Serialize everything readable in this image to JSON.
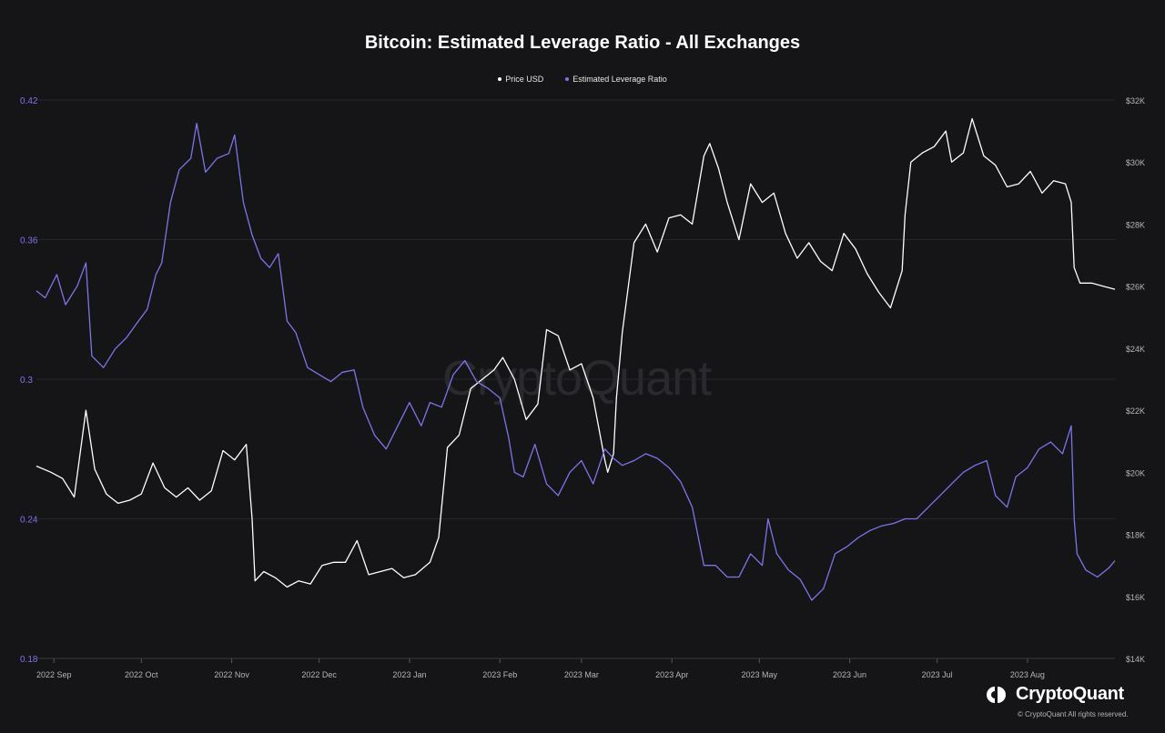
{
  "watermark": "CryptoQuant",
  "brand": {
    "name": "CryptoQuant",
    "copyright": "© CryptoQuant All rights reserved."
  },
  "chart_data": {
    "type": "line",
    "title": "Bitcoin: Estimated Leverage Ratio - All Exchanges",
    "legend_position": "top-center",
    "grid": true,
    "x_tick_labels": [
      "2022 Sep",
      "2022 Oct",
      "2022 Nov",
      "2022 Dec",
      "2023 Jan",
      "2023 Feb",
      "2023 Mar",
      "2023 Apr",
      "2023 May",
      "2023 Jun",
      "2023 Jul",
      "2023 Aug"
    ],
    "x_range": [
      "2022-08-26",
      "2023-08-31"
    ],
    "y_left": {
      "ticks": [
        "0.18",
        "0.24",
        "0.3",
        "0.36",
        "0.42"
      ],
      "range": [
        0.18,
        0.42
      ],
      "color": "#7c74e9"
    },
    "y_right": {
      "ticks": [
        "$14K",
        "$16K",
        "$18K",
        "$20K",
        "$22K",
        "$24K",
        "$26K",
        "$28K",
        "$30K",
        "$32K"
      ],
      "range": [
        14000,
        32000
      ],
      "color": "#b5b5b5"
    },
    "series": [
      {
        "name": "Price USD",
        "axis": "right",
        "color": "#ffffff",
        "points": [
          [
            "2022-08-26",
            20200
          ],
          [
            "2022-08-31",
            20000
          ],
          [
            "2022-09-04",
            19800
          ],
          [
            "2022-09-08",
            19200
          ],
          [
            "2022-09-12",
            22000
          ],
          [
            "2022-09-15",
            20100
          ],
          [
            "2022-09-19",
            19300
          ],
          [
            "2022-09-23",
            19000
          ],
          [
            "2022-09-27",
            19100
          ],
          [
            "2022-10-01",
            19300
          ],
          [
            "2022-10-05",
            20300
          ],
          [
            "2022-10-09",
            19500
          ],
          [
            "2022-10-13",
            19200
          ],
          [
            "2022-10-17",
            19500
          ],
          [
            "2022-10-21",
            19100
          ],
          [
            "2022-10-25",
            19400
          ],
          [
            "2022-10-29",
            20700
          ],
          [
            "2022-11-02",
            20400
          ],
          [
            "2022-11-06",
            20900
          ],
          [
            "2022-11-08",
            18500
          ],
          [
            "2022-11-09",
            16500
          ],
          [
            "2022-11-12",
            16800
          ],
          [
            "2022-11-16",
            16600
          ],
          [
            "2022-11-20",
            16300
          ],
          [
            "2022-11-24",
            16500
          ],
          [
            "2022-11-28",
            16400
          ],
          [
            "2022-12-02",
            17000
          ],
          [
            "2022-12-06",
            17100
          ],
          [
            "2022-12-10",
            17100
          ],
          [
            "2022-12-14",
            17800
          ],
          [
            "2022-12-18",
            16700
          ],
          [
            "2022-12-22",
            16800
          ],
          [
            "2022-12-26",
            16900
          ],
          [
            "2022-12-30",
            16600
          ],
          [
            "2023-01-03",
            16700
          ],
          [
            "2023-01-08",
            17100
          ],
          [
            "2023-01-11",
            17900
          ],
          [
            "2023-01-14",
            20800
          ],
          [
            "2023-01-18",
            21200
          ],
          [
            "2023-01-22",
            22700
          ],
          [
            "2023-01-26",
            23000
          ],
          [
            "2023-01-30",
            23300
          ],
          [
            "2023-02-02",
            23700
          ],
          [
            "2023-02-06",
            23000
          ],
          [
            "2023-02-10",
            21700
          ],
          [
            "2023-02-14",
            22200
          ],
          [
            "2023-02-17",
            24600
          ],
          [
            "2023-02-21",
            24400
          ],
          [
            "2023-02-25",
            23300
          ],
          [
            "2023-03-01",
            23500
          ],
          [
            "2023-03-05",
            22400
          ],
          [
            "2023-03-09",
            20400
          ],
          [
            "2023-03-10",
            20000
          ],
          [
            "2023-03-12",
            20600
          ],
          [
            "2023-03-13",
            22400
          ],
          [
            "2023-03-15",
            24500
          ],
          [
            "2023-03-19",
            27400
          ],
          [
            "2023-03-23",
            28000
          ],
          [
            "2023-03-27",
            27100
          ],
          [
            "2023-03-31",
            28200
          ],
          [
            "2023-04-04",
            28300
          ],
          [
            "2023-04-08",
            28000
          ],
          [
            "2023-04-12",
            30200
          ],
          [
            "2023-04-14",
            30600
          ],
          [
            "2023-04-17",
            29800
          ],
          [
            "2023-04-20",
            28700
          ],
          [
            "2023-04-24",
            27500
          ],
          [
            "2023-04-28",
            29300
          ],
          [
            "2023-05-02",
            28700
          ],
          [
            "2023-05-06",
            29000
          ],
          [
            "2023-05-10",
            27700
          ],
          [
            "2023-05-14",
            26900
          ],
          [
            "2023-05-18",
            27400
          ],
          [
            "2023-05-22",
            26800
          ],
          [
            "2023-05-26",
            26500
          ],
          [
            "2023-05-30",
            27700
          ],
          [
            "2023-06-03",
            27200
          ],
          [
            "2023-06-07",
            26400
          ],
          [
            "2023-06-11",
            25800
          ],
          [
            "2023-06-15",
            25300
          ],
          [
            "2023-06-19",
            26500
          ],
          [
            "2023-06-20",
            28300
          ],
          [
            "2023-06-22",
            30000
          ],
          [
            "2023-06-26",
            30300
          ],
          [
            "2023-06-30",
            30500
          ],
          [
            "2023-07-04",
            31000
          ],
          [
            "2023-07-06",
            30000
          ],
          [
            "2023-07-10",
            30300
          ],
          [
            "2023-07-13",
            31400
          ],
          [
            "2023-07-17",
            30200
          ],
          [
            "2023-07-21",
            29900
          ],
          [
            "2023-07-25",
            29200
          ],
          [
            "2023-07-29",
            29300
          ],
          [
            "2023-08-02",
            29700
          ],
          [
            "2023-08-06",
            29000
          ],
          [
            "2023-08-10",
            29400
          ],
          [
            "2023-08-14",
            29300
          ],
          [
            "2023-08-16",
            28700
          ],
          [
            "2023-08-17",
            26600
          ],
          [
            "2023-08-19",
            26100
          ],
          [
            "2023-08-23",
            26100
          ],
          [
            "2023-08-27",
            26000
          ],
          [
            "2023-08-31",
            25900
          ]
        ]
      },
      {
        "name": "Estimated Leverage Ratio",
        "axis": "left",
        "color": "#7c74e9",
        "points": [
          [
            "2022-08-26",
            0.338
          ],
          [
            "2022-08-29",
            0.335
          ],
          [
            "2022-09-02",
            0.345
          ],
          [
            "2022-09-05",
            0.332
          ],
          [
            "2022-09-09",
            0.34
          ],
          [
            "2022-09-12",
            0.35
          ],
          [
            "2022-09-14",
            0.31
          ],
          [
            "2022-09-18",
            0.305
          ],
          [
            "2022-09-22",
            0.313
          ],
          [
            "2022-09-26",
            0.318
          ],
          [
            "2022-09-30",
            0.325
          ],
          [
            "2022-10-03",
            0.33
          ],
          [
            "2022-10-06",
            0.345
          ],
          [
            "2022-10-08",
            0.35
          ],
          [
            "2022-10-11",
            0.376
          ],
          [
            "2022-10-14",
            0.39
          ],
          [
            "2022-10-18",
            0.395
          ],
          [
            "2022-10-20",
            0.41
          ],
          [
            "2022-10-23",
            0.389
          ],
          [
            "2022-10-27",
            0.395
          ],
          [
            "2022-10-31",
            0.397
          ],
          [
            "2022-11-02",
            0.405
          ],
          [
            "2022-11-05",
            0.376
          ],
          [
            "2022-11-08",
            0.362
          ],
          [
            "2022-11-11",
            0.352
          ],
          [
            "2022-11-14",
            0.348
          ],
          [
            "2022-11-17",
            0.354
          ],
          [
            "2022-11-20",
            0.325
          ],
          [
            "2022-11-23",
            0.32
          ],
          [
            "2022-11-27",
            0.305
          ],
          [
            "2022-12-01",
            0.302
          ],
          [
            "2022-12-05",
            0.299
          ],
          [
            "2022-12-09",
            0.303
          ],
          [
            "2022-12-13",
            0.304
          ],
          [
            "2022-12-16",
            0.288
          ],
          [
            "2022-12-20",
            0.276
          ],
          [
            "2022-12-24",
            0.27
          ],
          [
            "2022-12-28",
            0.28
          ],
          [
            "2023-01-01",
            0.29
          ],
          [
            "2023-01-05",
            0.28
          ],
          [
            "2023-01-08",
            0.29
          ],
          [
            "2023-01-12",
            0.288
          ],
          [
            "2023-01-16",
            0.302
          ],
          [
            "2023-01-20",
            0.308
          ],
          [
            "2023-01-24",
            0.299
          ],
          [
            "2023-01-28",
            0.296
          ],
          [
            "2023-02-01",
            0.292
          ],
          [
            "2023-02-04",
            0.275
          ],
          [
            "2023-02-06",
            0.26
          ],
          [
            "2023-02-09",
            0.258
          ],
          [
            "2023-02-13",
            0.272
          ],
          [
            "2023-02-17",
            0.255
          ],
          [
            "2023-02-21",
            0.25
          ],
          [
            "2023-02-25",
            0.26
          ],
          [
            "2023-03-01",
            0.265
          ],
          [
            "2023-03-05",
            0.255
          ],
          [
            "2023-03-09",
            0.27
          ],
          [
            "2023-03-12",
            0.266
          ],
          [
            "2023-03-15",
            0.263
          ],
          [
            "2023-03-19",
            0.265
          ],
          [
            "2023-03-23",
            0.268
          ],
          [
            "2023-03-27",
            0.266
          ],
          [
            "2023-03-31",
            0.262
          ],
          [
            "2023-04-04",
            0.256
          ],
          [
            "2023-04-08",
            0.245
          ],
          [
            "2023-04-12",
            0.22
          ],
          [
            "2023-04-16",
            0.22
          ],
          [
            "2023-04-20",
            0.215
          ],
          [
            "2023-04-24",
            0.215
          ],
          [
            "2023-04-28",
            0.225
          ],
          [
            "2023-05-02",
            0.22
          ],
          [
            "2023-05-04",
            0.24
          ],
          [
            "2023-05-07",
            0.225
          ],
          [
            "2023-05-11",
            0.218
          ],
          [
            "2023-05-15",
            0.214
          ],
          [
            "2023-05-19",
            0.205
          ],
          [
            "2023-05-23",
            0.21
          ],
          [
            "2023-05-27",
            0.225
          ],
          [
            "2023-05-31",
            0.228
          ],
          [
            "2023-06-04",
            0.232
          ],
          [
            "2023-06-08",
            0.235
          ],
          [
            "2023-06-12",
            0.237
          ],
          [
            "2023-06-16",
            0.238
          ],
          [
            "2023-06-20",
            0.24
          ],
          [
            "2023-06-24",
            0.24
          ],
          [
            "2023-06-28",
            0.245
          ],
          [
            "2023-07-02",
            0.25
          ],
          [
            "2023-07-06",
            0.255
          ],
          [
            "2023-07-10",
            0.26
          ],
          [
            "2023-07-14",
            0.263
          ],
          [
            "2023-07-18",
            0.265
          ],
          [
            "2023-07-21",
            0.25
          ],
          [
            "2023-07-25",
            0.245
          ],
          [
            "2023-07-28",
            0.258
          ],
          [
            "2023-08-01",
            0.262
          ],
          [
            "2023-08-05",
            0.27
          ],
          [
            "2023-08-09",
            0.273
          ],
          [
            "2023-08-13",
            0.268
          ],
          [
            "2023-08-16",
            0.28
          ],
          [
            "2023-08-17",
            0.24
          ],
          [
            "2023-08-18",
            0.225
          ],
          [
            "2023-08-21",
            0.218
          ],
          [
            "2023-08-25",
            0.215
          ],
          [
            "2023-08-29",
            0.219
          ],
          [
            "2023-08-31",
            0.222
          ]
        ]
      }
    ]
  }
}
